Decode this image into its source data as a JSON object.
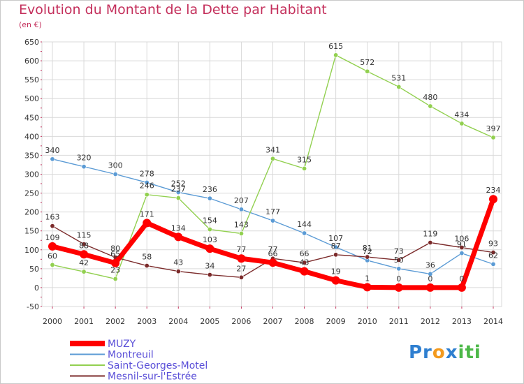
{
  "header": {
    "title": "Evolution du Montant de la Dette par Habitant",
    "subtitle": "(en €)"
  },
  "logo": {
    "text": "Proxiti",
    "colors": [
      "#2f7fd0",
      "#f39a1e",
      "#4cb848"
    ]
  },
  "colors": {
    "grid": "#d9d9d9",
    "axis_ticks": "#c4305c",
    "background": "#ffffff",
    "title": "#c4305c"
  },
  "chart_data": {
    "type": "line",
    "title": "Evolution du Montant de la Dette par Habitant",
    "subtitle": "(en €)",
    "xlabel": "",
    "ylabel": "",
    "x": [
      "2000",
      "2001",
      "2002",
      "2003",
      "2004",
      "2005",
      "2006",
      "2007",
      "2008",
      "2009",
      "2010",
      "2011",
      "2012",
      "2013",
      "2014"
    ],
    "yticks": [
      "650",
      "600",
      "550",
      "500",
      "450",
      "400",
      "350",
      "300",
      "250",
      "200",
      "150",
      "100",
      "50",
      "0",
      "-50"
    ],
    "ylim": [
      -50,
      650
    ],
    "grid": true,
    "legend_position": "bottom-left",
    "series": [
      {
        "name": "MUZY",
        "color": "#ff0000",
        "thick": true,
        "values": [
          109,
          88,
          65,
          171,
          134,
          103,
          77,
          66,
          43,
          19,
          1,
          0,
          0,
          0,
          234
        ],
        "labels": [
          "109",
          "88",
          "65",
          "171",
          "134",
          "103",
          "77",
          "66",
          "43",
          "19",
          "1",
          "0",
          "0",
          "0",
          "234"
        ]
      },
      {
        "name": "Montreuil",
        "color": "#5b9bd5",
        "thick": false,
        "values": [
          340,
          320,
          300,
          278,
          252,
          236,
          207,
          177,
          144,
          107,
          72,
          50,
          36,
          91,
          62
        ],
        "labels": [
          "340",
          "320",
          "300",
          "278",
          "252",
          "236",
          "207",
          "177",
          "144",
          "107",
          "72",
          "50",
          "36",
          "91",
          "62"
        ]
      },
      {
        "name": "Saint-Georges-Motel",
        "color": "#92d050",
        "thick": false,
        "values": [
          60,
          42,
          23,
          246,
          237,
          154,
          143,
          341,
          315,
          615,
          572,
          531,
          480,
          434,
          397
        ],
        "labels": [
          "60",
          "42",
          "23",
          "246",
          "237",
          "154",
          "143",
          "341",
          "315",
          "615",
          "572",
          "531",
          "480",
          "434",
          "397"
        ]
      },
      {
        "name": "Mesnil-sur-l'Estrée",
        "color": "#7b2a2a",
        "thick": false,
        "values": [
          163,
          115,
          80,
          58,
          43,
          34,
          27,
          77,
          66,
          87,
          81,
          73,
          119,
          106,
          93
        ],
        "labels": [
          "163",
          "115",
          "80",
          "58",
          "43",
          "34",
          "27",
          "77",
          "66",
          "87",
          "81",
          "73",
          "119",
          "106",
          "93"
        ]
      }
    ]
  }
}
